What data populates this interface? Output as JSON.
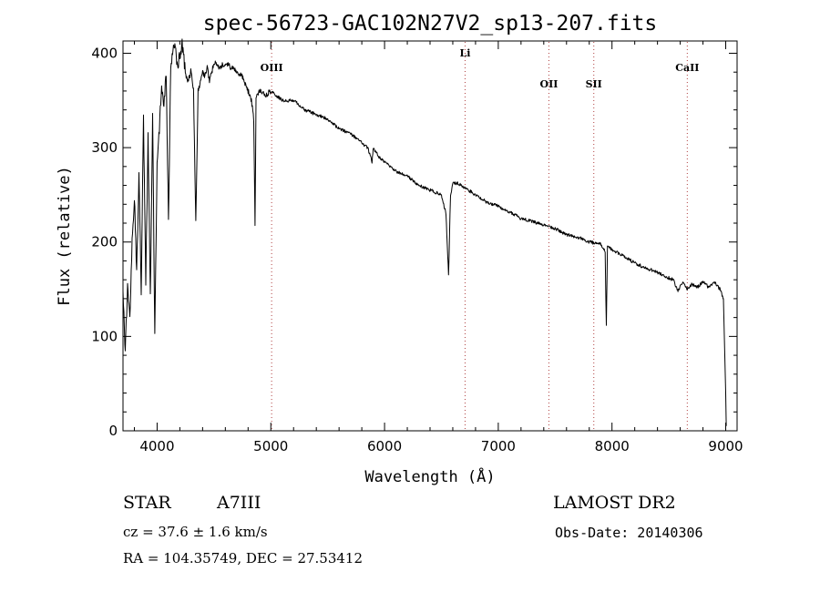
{
  "chart_data": {
    "type": "line",
    "title": "spec-56723-GAC102N27V2_sp13-207.fits",
    "xlabel": "Wavelength (Å)",
    "ylabel": "Flux (relative)",
    "xlim": [
      3700,
      9100
    ],
    "ylim": [
      0,
      413
    ],
    "xticks": [
      4000,
      5000,
      6000,
      7000,
      8000,
      9000
    ],
    "yticks": [
      0,
      100,
      200,
      300,
      400
    ],
    "grid": false,
    "series": [
      {
        "x": [
          3700,
          3720,
          3740,
          3760,
          3780,
          3800,
          3820,
          3840,
          3860,
          3880,
          3900,
          3920,
          3940,
          3960,
          3980,
          4000,
          4020,
          4040,
          4060,
          4080,
          4100,
          4120,
          4140,
          4160,
          4180,
          4200,
          4220,
          4240,
          4260,
          4280,
          4300,
          4320,
          4340,
          4360,
          4380,
          4400,
          4420,
          4440,
          4460,
          4480,
          4500,
          4550,
          4600,
          4650,
          4700,
          4750,
          4800,
          4830,
          4850,
          4861,
          4870,
          4900,
          4950,
          5000,
          5100,
          5200,
          5300,
          5400,
          5500,
          5600,
          5700,
          5800,
          5850,
          5890,
          5900,
          5950,
          6000,
          6100,
          6200,
          6300,
          6400,
          6500,
          6540,
          6563,
          6580,
          6600,
          6650,
          6700,
          6800,
          6900,
          7000,
          7100,
          7200,
          7300,
          7400,
          7500,
          7600,
          7700,
          7800,
          7900,
          7940,
          7950,
          7960,
          8000,
          8100,
          8200,
          8300,
          8400,
          8500,
          8540,
          8580,
          8620,
          8662,
          8700,
          8750,
          8800,
          8850,
          8900,
          8950,
          8980,
          9000,
          9005
        ],
        "y": [
          145,
          85,
          150,
          120,
          200,
          250,
          170,
          270,
          150,
          330,
          160,
          310,
          145,
          330,
          105,
          280,
          320,
          370,
          340,
          380,
          220,
          390,
          400,
          410,
          380,
          400,
          410,
          390,
          370,
          375,
          380,
          360,
          220,
          360,
          370,
          380,
          375,
          385,
          370,
          380,
          390,
          385,
          390,
          385,
          380,
          375,
          360,
          350,
          330,
          215,
          355,
          360,
          355,
          360,
          350,
          350,
          340,
          335,
          330,
          320,
          315,
          305,
          300,
          285,
          300,
          290,
          285,
          275,
          270,
          260,
          255,
          250,
          230,
          165,
          250,
          262,
          262,
          258,
          250,
          242,
          238,
          232,
          225,
          222,
          218,
          214,
          208,
          205,
          200,
          198,
          190,
          110,
          195,
          192,
          185,
          178,
          172,
          168,
          162,
          160,
          148,
          158,
          150,
          155,
          152,
          158,
          152,
          158,
          150,
          140,
          40,
          5
        ]
      }
    ],
    "annotations": [
      {
        "label": "OIII",
        "x": 5007
      },
      {
        "label": "Li",
        "x": 6708
      },
      {
        "label": "OII",
        "x": 7445
      },
      {
        "label": "SII",
        "x": 7840
      },
      {
        "label": "CaII",
        "x": 8662
      }
    ]
  },
  "info": {
    "object_class": "STAR",
    "subclass": "A7III",
    "survey": "LAMOST DR2",
    "cz": "cz = 37.6 ± 1.6 km/s",
    "obs_date": "Obs-Date: 20140306",
    "coords": "RA = 104.35749, DEC =  27.53412"
  }
}
